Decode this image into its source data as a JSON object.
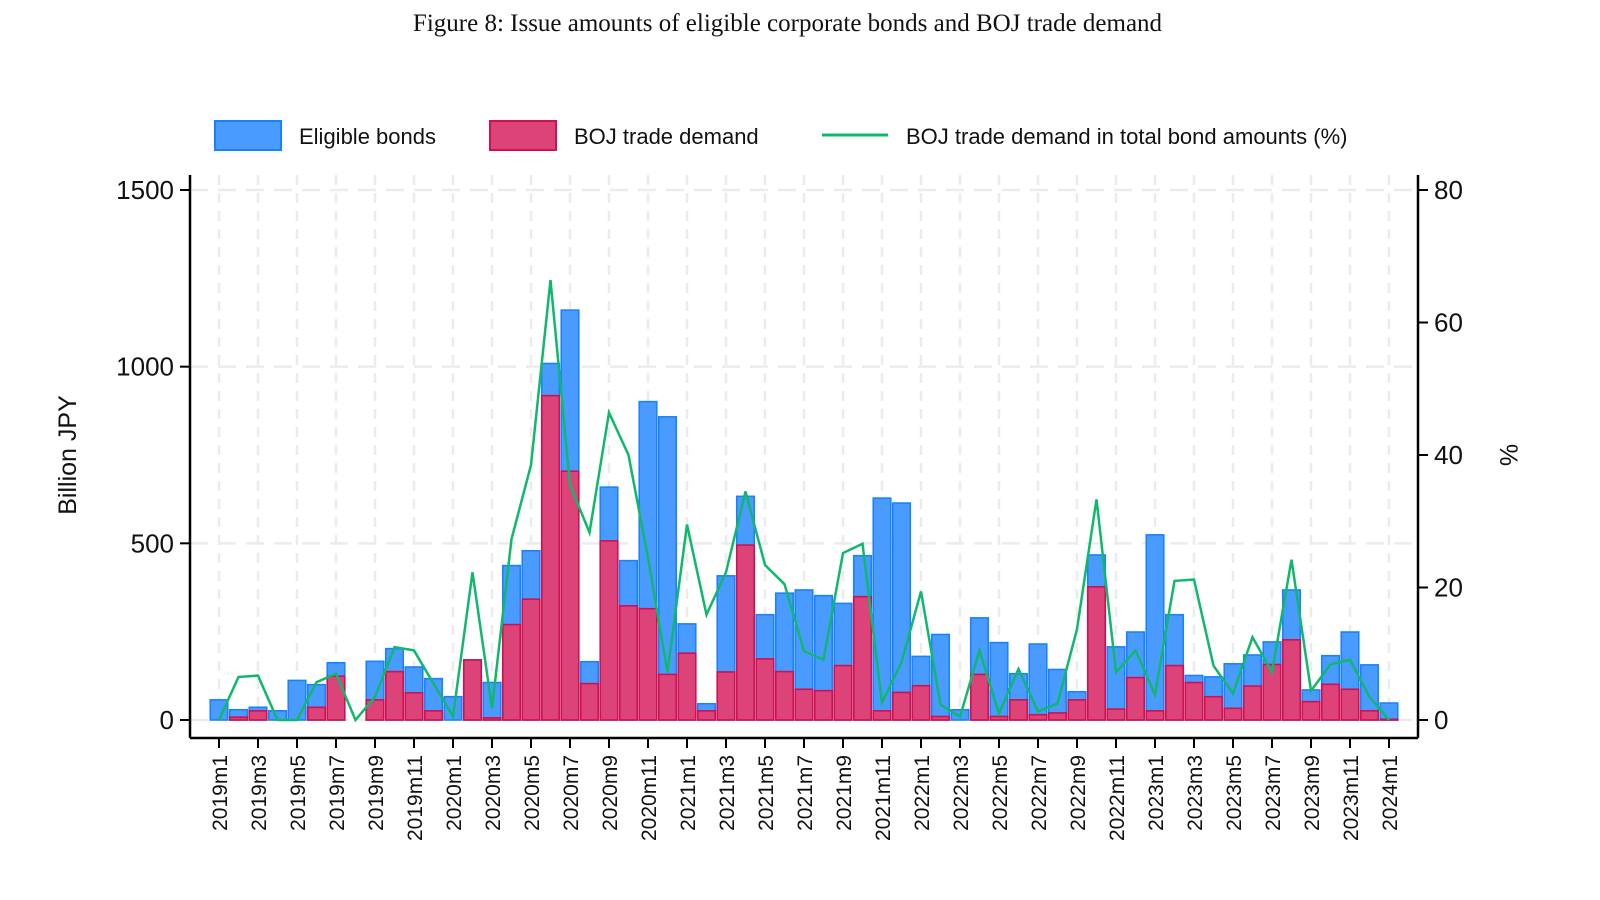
{
  "title": "Figure 8: Issue amounts of eligible corporate bonds and BOJ trade demand",
  "chart_data": {
    "type": "bar+line",
    "title": "Figure 8: Issue amounts of eligible corporate bonds and BOJ trade demand",
    "ylabel": "Billion JPY",
    "y2label": "%",
    "ylim": [
      0,
      1500
    ],
    "y2lim": [
      0,
      80
    ],
    "yticks": [
      "0",
      "500",
      "1000",
      "1500"
    ],
    "y2ticks": [
      "0",
      "20",
      "40",
      "60",
      "80"
    ],
    "grid": true,
    "legend_position": "top",
    "colors": {
      "eligible": "#4a9bff",
      "eligible_edge": "#1a82ff",
      "boj": "#dc4379",
      "boj_edge": "#d0104f",
      "share": "#10b86c"
    },
    "x_tick_labels": [
      "2019m1",
      "2019m3",
      "2019m5",
      "2019m7",
      "2019m9",
      "2019m11",
      "2020m1",
      "2020m3",
      "2020m5",
      "2020m7",
      "2020m9",
      "2020m11",
      "2021m1",
      "2021m3",
      "2021m5",
      "2021m7",
      "2021m9",
      "2021m11",
      "2022m1",
      "2022m3",
      "2022m5",
      "2022m7",
      "2022m9",
      "2022m11",
      "2023m1",
      "2023m3",
      "2023m5",
      "2023m7",
      "2023m9",
      "2023m11",
      "2024m1"
    ],
    "x_start": "2019m1",
    "x_end": "2024m1",
    "series": [
      {
        "name": "Eligible bonds",
        "type": "bar",
        "values": [
          57,
          29,
          36,
          26,
          112,
          100,
          162,
          0,
          166,
          202,
          150,
          117,
          66,
          170,
          106,
          437,
          479,
          1009,
          1160,
          165,
          659,
          451,
          901,
          858,
          272,
          46,
          408,
          633,
          298,
          359,
          368,
          352,
          330,
          465,
          628,
          614,
          180,
          242,
          29,
          289,
          219,
          131,
          215,
          143,
          80,
          467,
          207,
          249,
          524,
          298,
          126,
          122,
          159,
          184,
          221,
          368,
          85,
          182,
          249,
          156,
          48
        ]
      },
      {
        "name": "BOJ trade demand",
        "type": "bar",
        "values": [
          0,
          8,
          26,
          0,
          0,
          36,
          124,
          0,
          57,
          137,
          77,
          26,
          0,
          170,
          6,
          270,
          342,
          918,
          704,
          103,
          507,
          323,
          315,
          129,
          189,
          26,
          136,
          495,
          173,
          137,
          87,
          83,
          154,
          349,
          26,
          78,
          97,
          10,
          0,
          129,
          10,
          57,
          15,
          20,
          57,
          377,
          31,
          120,
          26,
          154,
          106,
          66,
          33,
          96,
          157,
          227,
          52,
          101,
          87,
          26,
          2
        ]
      },
      {
        "name": "BOJ trade demand in total bond amounts (%)",
        "type": "line",
        "axis": "right",
        "values": [
          0,
          6.5,
          6.7,
          0,
          0,
          5.7,
          7,
          0,
          3.5,
          11,
          10.5,
          5.5,
          0.5,
          22.3,
          1.8,
          27.3,
          38.5,
          66.4,
          35.5,
          28.3,
          46.4,
          40,
          24.5,
          7.2,
          29.5,
          15.9,
          22.3,
          34.5,
          23.4,
          20.5,
          10.4,
          9.1,
          25.2,
          26.6,
          2.6,
          8.7,
          19.4,
          2.3,
          0.5,
          10.5,
          1,
          7.7,
          1.3,
          2.5,
          13.7,
          33.3,
          7.2,
          10.5,
          3.8,
          21,
          21.2,
          8.2,
          4,
          12.5,
          7.2,
          24.2,
          4.4,
          8.4,
          9.1,
          3.5,
          0
        ]
      }
    ]
  }
}
